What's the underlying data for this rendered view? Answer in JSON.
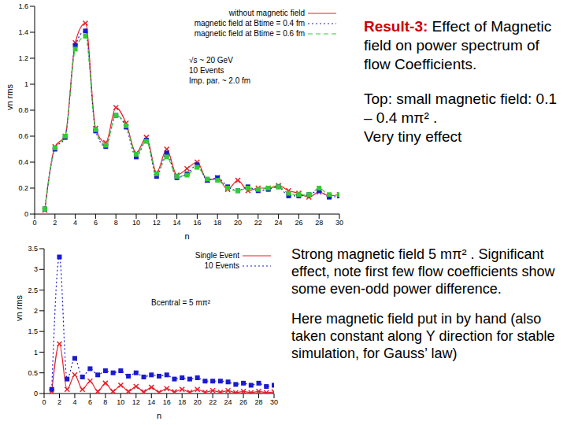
{
  "chart_data": [
    {
      "type": "line",
      "x_label": "n",
      "y_label": "vn rms",
      "xlim": [
        0,
        30
      ],
      "xticks": [
        0,
        2,
        4,
        6,
        8,
        10,
        12,
        14,
        16,
        18,
        20,
        22,
        24,
        26,
        28,
        30
      ],
      "ylim": [
        0,
        1.6
      ],
      "yticks": [
        0,
        0.2,
        0.4,
        0.6,
        0.8,
        1,
        1.2,
        1.4,
        1.6
      ],
      "grid": false,
      "legend": "upper right",
      "annotations": [
        "√s ~ 20 GeV",
        "10 Events",
        "Imp. par. ~ 2.0 fm"
      ],
      "x": [
        1,
        2,
        3,
        4,
        5,
        6,
        7,
        8,
        9,
        10,
        11,
        12,
        13,
        14,
        15,
        16,
        17,
        18,
        19,
        20,
        21,
        22,
        23,
        24,
        25,
        26,
        27,
        28,
        29,
        30
      ],
      "series": [
        {
          "name": "without magnetic field",
          "color": "#e8202a",
          "marker": "x",
          "line_style": "solid",
          "values": [
            0.03,
            0.52,
            0.6,
            1.32,
            1.47,
            0.66,
            0.55,
            0.82,
            0.7,
            0.47,
            0.59,
            0.32,
            0.5,
            0.3,
            0.35,
            0.4,
            0.26,
            0.28,
            0.19,
            0.26,
            0.18,
            0.2,
            0.2,
            0.22,
            0.18,
            0.16,
            0.13,
            0.17,
            0.14,
            0.15
          ]
        },
        {
          "name": "magnetic field at Btime = 0.4 fm",
          "color": "#1a1ad0",
          "marker": "square",
          "line_style": "dotted",
          "values": [
            0.04,
            0.5,
            0.59,
            1.3,
            1.41,
            0.64,
            0.52,
            0.76,
            0.67,
            0.44,
            0.57,
            0.29,
            0.47,
            0.28,
            0.31,
            0.38,
            0.26,
            0.28,
            0.21,
            0.18,
            0.21,
            0.18,
            0.19,
            0.21,
            0.14,
            0.14,
            0.15,
            0.18,
            0.13,
            0.14
          ]
        },
        {
          "name": "magnetic field at Btime = 0.6 fm",
          "color": "#33cc33",
          "marker": "square",
          "line_style": "dashed",
          "values": [
            0.04,
            0.51,
            0.6,
            1.27,
            1.37,
            0.65,
            0.53,
            0.76,
            0.68,
            0.46,
            0.56,
            0.31,
            0.44,
            0.29,
            0.3,
            0.36,
            0.27,
            0.26,
            0.2,
            0.18,
            0.2,
            0.19,
            0.2,
            0.21,
            0.16,
            0.15,
            0.15,
            0.2,
            0.15,
            0.15
          ]
        }
      ]
    },
    {
      "type": "line",
      "x_label": "n",
      "y_label": "vn rms",
      "xlim": [
        0,
        30
      ],
      "xticks": [
        0,
        2,
        4,
        6,
        8,
        10,
        12,
        14,
        16,
        18,
        20,
        22,
        24,
        26,
        28,
        30
      ],
      "ylim": [
        0,
        3.5
      ],
      "yticks": [
        0,
        0.5,
        1,
        1.5,
        2,
        2.5,
        3,
        3.5
      ],
      "grid": false,
      "legend": "upper right",
      "annotations": [
        "Bcentral = 5 mπ²"
      ],
      "x": [
        1,
        2,
        3,
        4,
        5,
        6,
        7,
        8,
        9,
        10,
        11,
        12,
        13,
        14,
        15,
        16,
        17,
        18,
        19,
        20,
        21,
        22,
        23,
        24,
        25,
        26,
        27,
        28,
        29,
        30
      ],
      "series": [
        {
          "name": "Single Event",
          "color": "#e8202a",
          "marker": "x",
          "line_style": "solid",
          "values": [
            0.05,
            1.2,
            0.1,
            0.45,
            0.1,
            0.3,
            0.05,
            0.25,
            0.05,
            0.2,
            0.05,
            0.17,
            0.04,
            0.15,
            0.03,
            0.12,
            0.04,
            0.1,
            0.03,
            0.1,
            0.03,
            0.07,
            0.03,
            0.07,
            0.02,
            0.05,
            0.02,
            0.05,
            0.02,
            0.04
          ]
        },
        {
          "name": "10 Events",
          "color": "#1a1ad0",
          "marker": "square",
          "line_style": "dotted",
          "values": [
            0.1,
            3.3,
            0.35,
            0.85,
            0.4,
            0.6,
            0.45,
            0.55,
            0.5,
            0.55,
            0.42,
            0.5,
            0.4,
            0.45,
            0.42,
            0.45,
            0.35,
            0.38,
            0.35,
            0.38,
            0.3,
            0.3,
            0.3,
            0.28,
            0.22,
            0.25,
            0.2,
            0.25,
            0.17,
            0.2
          ]
        }
      ]
    }
  ],
  "slide": {
    "heading": "Result-3:",
    "heading_text": "Effect of Magnetic field on power spectrum of flow Coefficients.",
    "top_note": [
      "Top: small magnetic field: 0.1 – 0.4 mπ² .",
      "Very tiny effect"
    ],
    "bottom_note": [
      "Strong magnetic field 5 mπ² . Significant effect, note first few flow coefficients show some even-odd power difference.",
      "Here magnetic field put in by hand (also taken constant along Y direction for stable simulation, for Gauss’ law)"
    ]
  }
}
